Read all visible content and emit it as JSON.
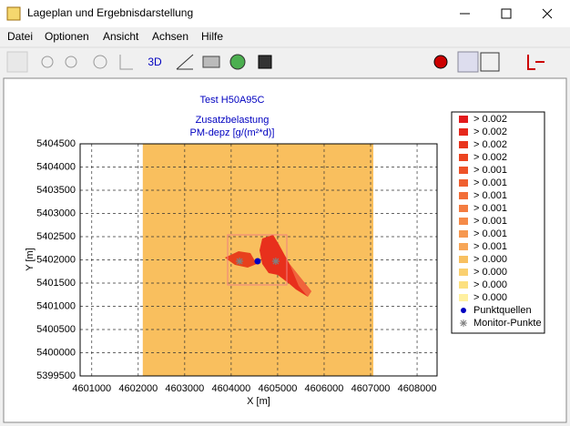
{
  "window": {
    "title": "Lageplan und Ergebnisdarstellung",
    "menu": [
      "Datei",
      "Optionen",
      "Ansicht",
      "Achsen",
      "Hilfe"
    ],
    "toolbar_text": "3D"
  },
  "chart_data": {
    "type": "scatter",
    "title": "Test H50A95C",
    "subtitle": [
      "Zusatzbelastung",
      "PM-depz [g/(m²*d)]"
    ],
    "x_label": "X [m]",
    "y_label": "Y [m]",
    "xlim": [
      4600750,
      4608430
    ],
    "ylim": [
      5399500,
      5404500
    ],
    "xticks": [
      4601000,
      4602000,
      4603000,
      4604000,
      4605000,
      4606000,
      4607000,
      4608000
    ],
    "yticks": [
      5399500,
      5400000,
      5400500,
      5401000,
      5401500,
      5402000,
      5402500,
      5403000,
      5403500,
      5404000,
      5404500
    ],
    "grid": true,
    "region": {
      "x": [
        4602098,
        4607059
      ],
      "y": [
        5399500,
        5404500
      ],
      "color": "#f9bf5e"
    },
    "legend": [
      {
        "label": "> 0.002",
        "color": "#e31a1c"
      },
      {
        "label": "> 0.002",
        "color": "#e6281c"
      },
      {
        "label": "> 0.002",
        "color": "#e9361e"
      },
      {
        "label": "> 0.002",
        "color": "#ec4420"
      },
      {
        "label": "> 0.001",
        "color": "#ee5228"
      },
      {
        "label": "> 0.001",
        "color": "#f06030"
      },
      {
        "label": "> 0.001",
        "color": "#f26e38"
      },
      {
        "label": "> 0.001",
        "color": "#f47c40"
      },
      {
        "label": "> 0.001",
        "color": "#f58a48"
      },
      {
        "label": "> 0.001",
        "color": "#f69850"
      },
      {
        "label": "> 0.001",
        "color": "#f7a658"
      },
      {
        "label": "> 0.000",
        "color": "#f8c060"
      },
      {
        "label": "> 0.000",
        "color": "#fad070"
      },
      {
        "label": "> 0.000",
        "color": "#fce080"
      },
      {
        "label": "> 0.000",
        "color": "#fff0a0"
      }
    ],
    "series": [
      {
        "name": "Punktquellen",
        "color": "#0000c0",
        "x": [
          4604569
        ],
        "y": [
          5401970
        ]
      },
      {
        "name": "Monitor-Punkte",
        "color": "#808080",
        "x": [
          4604180,
          4604960
        ],
        "y": [
          5401970,
          5401970
        ]
      }
    ]
  }
}
